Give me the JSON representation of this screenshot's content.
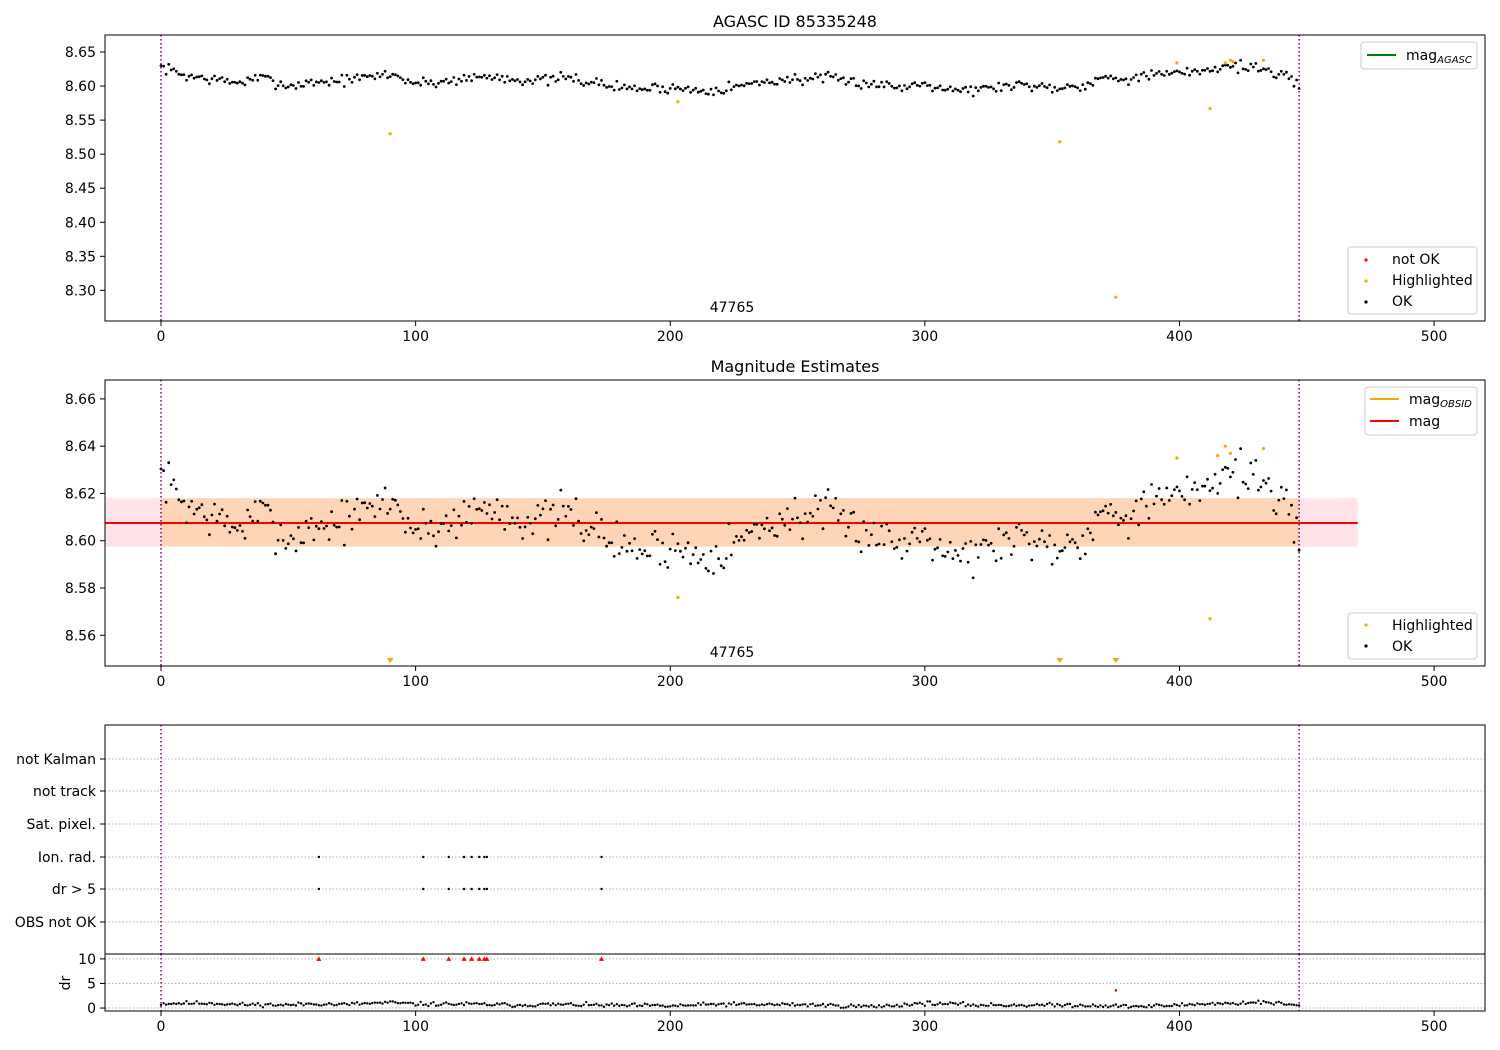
{
  "chart_data": [
    {
      "type": "scatter",
      "title": "AGASC ID 85335248",
      "annotation": "47765",
      "xlim": [
        -22,
        520
      ],
      "ylim": [
        8.255,
        8.675
      ],
      "xticks": [
        0,
        100,
        200,
        300,
        400,
        500
      ],
      "yticks": [
        8.3,
        8.35,
        8.4,
        8.45,
        8.5,
        8.55,
        8.6,
        8.65
      ],
      "vlines": [
        0,
        447
      ],
      "legend_lines": [
        {
          "label": "mag",
          "sub": "AGASC",
          "color": "#008000"
        }
      ],
      "legend_points": [
        {
          "label": "not OK",
          "color": "#ff0000"
        },
        {
          "label": "Highlighted",
          "color": "#ffa500"
        },
        {
          "label": "OK",
          "color": "#000000"
        }
      ],
      "ok_series": {
        "n": 448,
        "anchors": [
          [
            0,
            8.628
          ],
          [
            10,
            8.615
          ],
          [
            20,
            8.61
          ],
          [
            30,
            8.605
          ],
          [
            40,
            8.612
          ],
          [
            50,
            8.6
          ],
          [
            60,
            8.606
          ],
          [
            70,
            8.608
          ],
          [
            80,
            8.612
          ],
          [
            90,
            8.618
          ],
          [
            100,
            8.604
          ],
          [
            110,
            8.606
          ],
          [
            120,
            8.612
          ],
          [
            130,
            8.614
          ],
          [
            140,
            8.61
          ],
          [
            150,
            8.608
          ],
          [
            160,
            8.612
          ],
          [
            170,
            8.605
          ],
          [
            180,
            8.598
          ],
          [
            190,
            8.596
          ],
          [
            200,
            8.598
          ],
          [
            210,
            8.594
          ],
          [
            220,
            8.596
          ],
          [
            230,
            8.602
          ],
          [
            240,
            8.608
          ],
          [
            250,
            8.61
          ],
          [
            260,
            8.612
          ],
          [
            270,
            8.606
          ],
          [
            280,
            8.604
          ],
          [
            290,
            8.598
          ],
          [
            300,
            8.605
          ],
          [
            310,
            8.596
          ],
          [
            320,
            8.594
          ],
          [
            330,
            8.6
          ],
          [
            340,
            8.602
          ],
          [
            350,
            8.598
          ],
          [
            360,
            8.6
          ],
          [
            370,
            8.612
          ],
          [
            380,
            8.612
          ],
          [
            390,
            8.616
          ],
          [
            400,
            8.618
          ],
          [
            410,
            8.624
          ],
          [
            420,
            8.63
          ],
          [
            430,
            8.628
          ],
          [
            440,
            8.615
          ],
          [
            447,
            8.6
          ]
        ],
        "amp": 0.004
      },
      "highlighted": [
        [
          90,
          8.53
        ],
        [
          203,
          8.577
        ],
        [
          353,
          8.518
        ],
        [
          375,
          8.29
        ],
        [
          399,
          8.634
        ],
        [
          412,
          8.567
        ],
        [
          418,
          8.634
        ],
        [
          420,
          8.638
        ],
        [
          421,
          8.636
        ],
        [
          433,
          8.638
        ]
      ],
      "not_ok": []
    },
    {
      "type": "scatter",
      "title": "Magnitude Estimates",
      "annotation": "47765",
      "xlim": [
        -22,
        520
      ],
      "ylim": [
        8.547,
        8.668
      ],
      "xticks": [
        0,
        100,
        200,
        300,
        400,
        500
      ],
      "yticks": [
        8.56,
        8.58,
        8.6,
        8.62,
        8.64,
        8.66
      ],
      "vlines": [
        0,
        447
      ],
      "mag_line": 8.6075,
      "band_outer": {
        "x": [
          -22,
          470
        ],
        "y": [
          8.5975,
          8.618
        ]
      },
      "band_inner": {
        "x": [
          0,
          447
        ],
        "y": [
          8.5975,
          8.618
        ]
      },
      "legend_lines": [
        {
          "label": "mag",
          "sub": "OBSID",
          "color": "#ffa500"
        },
        {
          "label": "mag",
          "sub": "",
          "color": "#ff0000"
        }
      ],
      "legend_points": [
        {
          "label": "Highlighted",
          "color": "#ffa500"
        },
        {
          "label": "OK",
          "color": "#000000"
        }
      ],
      "ok_series": {
        "n": 448,
        "anchors": [
          [
            0,
            8.628
          ],
          [
            10,
            8.615
          ],
          [
            20,
            8.61
          ],
          [
            30,
            8.605
          ],
          [
            40,
            8.612
          ],
          [
            50,
            8.6
          ],
          [
            60,
            8.606
          ],
          [
            70,
            8.608
          ],
          [
            80,
            8.612
          ],
          [
            90,
            8.618
          ],
          [
            100,
            8.604
          ],
          [
            110,
            8.606
          ],
          [
            120,
            8.612
          ],
          [
            130,
            8.614
          ],
          [
            140,
            8.61
          ],
          [
            150,
            8.608
          ],
          [
            160,
            8.612
          ],
          [
            170,
            8.605
          ],
          [
            180,
            8.598
          ],
          [
            190,
            8.596
          ],
          [
            200,
            8.598
          ],
          [
            210,
            8.594
          ],
          [
            220,
            8.596
          ],
          [
            230,
            8.602
          ],
          [
            240,
            8.608
          ],
          [
            250,
            8.61
          ],
          [
            260,
            8.612
          ],
          [
            270,
            8.606
          ],
          [
            280,
            8.604
          ],
          [
            290,
            8.598
          ],
          [
            300,
            8.605
          ],
          [
            310,
            8.596
          ],
          [
            320,
            8.594
          ],
          [
            330,
            8.6
          ],
          [
            340,
            8.602
          ],
          [
            350,
            8.598
          ],
          [
            360,
            8.6
          ],
          [
            370,
            8.612
          ],
          [
            380,
            8.612
          ],
          [
            390,
            8.616
          ],
          [
            400,
            8.618
          ],
          [
            410,
            8.624
          ],
          [
            420,
            8.63
          ],
          [
            430,
            8.628
          ],
          [
            440,
            8.615
          ],
          [
            447,
            8.6
          ]
        ],
        "amp": 0.0045
      },
      "highlighted": [
        [
          203,
          8.576
        ],
        [
          399,
          8.635
        ],
        [
          412,
          8.567
        ],
        [
          415,
          8.636
        ],
        [
          418,
          8.64
        ],
        [
          420,
          8.637
        ],
        [
          433,
          8.639
        ]
      ],
      "below_markers": [
        90,
        353,
        375
      ]
    },
    {
      "type": "scatter",
      "title": "",
      "xlim": [
        -22,
        520
      ],
      "xticks": [
        0,
        100,
        200,
        300,
        400,
        500
      ],
      "vlines": [
        0,
        447
      ],
      "flag_categories": [
        "not Kalman",
        "not track",
        "Sat. pixel.",
        "Ion. rad.",
        "dr > 5",
        "OBS not OK"
      ],
      "flag_points": {
        "Ion. rad.": [
          62,
          103,
          113,
          119,
          122,
          125,
          127,
          128,
          173
        ],
        "dr > 5": [
          62,
          103,
          113,
          119,
          122,
          125,
          127,
          128,
          173
        ]
      },
      "dr_ylabel": "dr",
      "dr_ylim": [
        -0.6,
        11
      ],
      "dr_yticks": [
        0,
        5,
        10
      ],
      "dr_capped_red": [
        62,
        103,
        113,
        119,
        122,
        125,
        127,
        128,
        173
      ],
      "dr_red_points": [
        [
          375,
          3.6
        ]
      ],
      "dr_series": {
        "n": 448,
        "anchors": [
          [
            0,
            0.9
          ],
          [
            10,
            1.0
          ],
          [
            20,
            1.0
          ],
          [
            30,
            0.7
          ],
          [
            40,
            0.7
          ],
          [
            50,
            0.6
          ],
          [
            60,
            0.9
          ],
          [
            70,
            0.7
          ],
          [
            80,
            0.9
          ],
          [
            90,
            1.1
          ],
          [
            100,
            0.8
          ],
          [
            110,
            0.8
          ],
          [
            120,
            0.8
          ],
          [
            130,
            0.7
          ],
          [
            140,
            0.6
          ],
          [
            150,
            0.7
          ],
          [
            160,
            0.7
          ],
          [
            170,
            0.6
          ],
          [
            180,
            0.5
          ],
          [
            190,
            0.5
          ],
          [
            200,
            0.4
          ],
          [
            210,
            0.6
          ],
          [
            220,
            0.8
          ],
          [
            230,
            0.7
          ],
          [
            240,
            0.7
          ],
          [
            250,
            0.7
          ],
          [
            260,
            0.6
          ],
          [
            270,
            0.4
          ],
          [
            280,
            0.3
          ],
          [
            290,
            0.6
          ],
          [
            300,
            1.0
          ],
          [
            310,
            0.8
          ],
          [
            320,
            0.6
          ],
          [
            330,
            0.6
          ],
          [
            340,
            0.6
          ],
          [
            350,
            0.6
          ],
          [
            360,
            0.6
          ],
          [
            370,
            0.5
          ],
          [
            380,
            0.3
          ],
          [
            390,
            0.4
          ],
          [
            400,
            0.6
          ],
          [
            410,
            0.9
          ],
          [
            420,
            0.9
          ],
          [
            430,
            1.2
          ],
          [
            440,
            0.9
          ],
          [
            447,
            0.4
          ]
        ],
        "amp": 0.2
      }
    }
  ]
}
